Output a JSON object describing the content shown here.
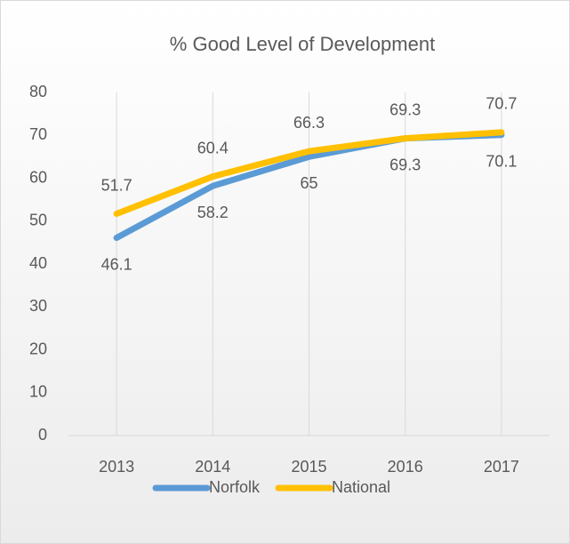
{
  "chart_data": {
    "type": "line",
    "title": "% Good Level of Development",
    "categories": [
      "2013",
      "2014",
      "2015",
      "2016",
      "2017"
    ],
    "series": [
      {
        "name": "Norfolk",
        "color": "#5b9bd5",
        "values": [
          46.1,
          58.2,
          65,
          69.3,
          70.1
        ],
        "label_position": "below"
      },
      {
        "name": "National",
        "color": "#ffc000",
        "values": [
          51.7,
          60.4,
          66.3,
          69.3,
          70.7
        ],
        "label_position": "above"
      }
    ],
    "ylim": [
      0,
      80
    ],
    "yticks": [
      0,
      10,
      20,
      30,
      40,
      50,
      60,
      70,
      80
    ],
    "grid": "vertical",
    "legend": "bottom"
  }
}
